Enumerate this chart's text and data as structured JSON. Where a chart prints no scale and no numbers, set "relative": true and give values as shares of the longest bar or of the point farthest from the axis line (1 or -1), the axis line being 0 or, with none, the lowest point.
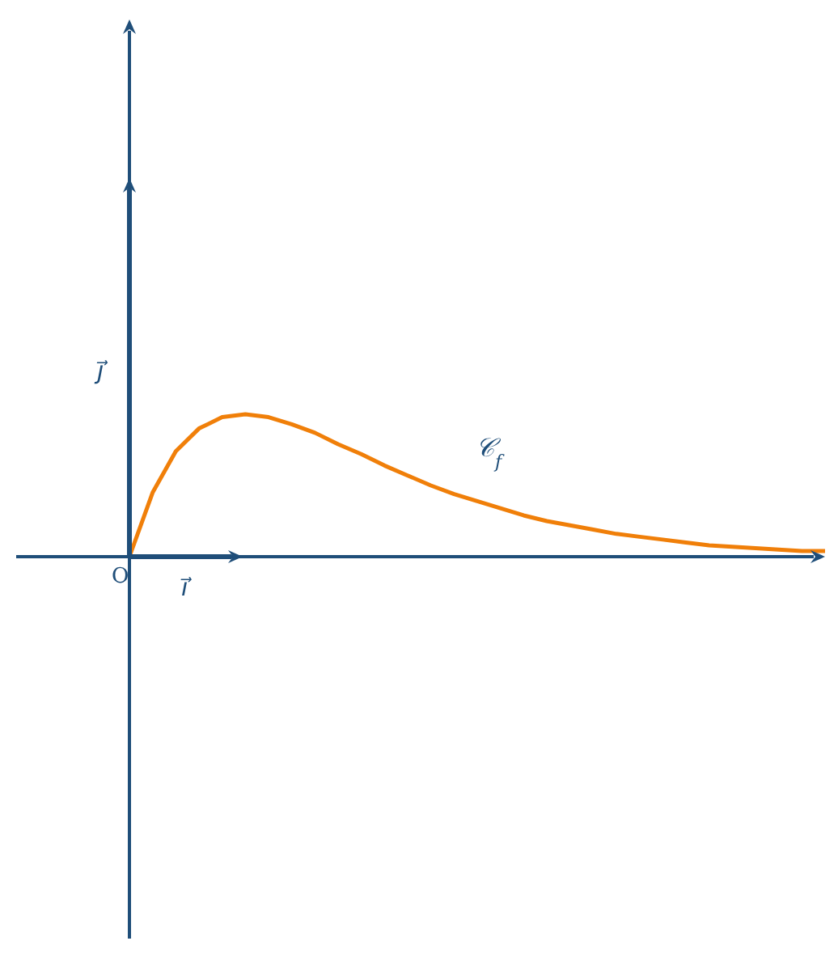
{
  "chart_data": {
    "type": "line",
    "relative": true,
    "categories": [
      null,
      null,
      null,
      null,
      null,
      null,
      null,
      null,
      null,
      null,
      null,
      null,
      null,
      null,
      null,
      null,
      null,
      null,
      null,
      null,
      null,
      null,
      null,
      null,
      null,
      null,
      null,
      null,
      null,
      null,
      null
    ],
    "series": [
      {
        "color": "#f07f09",
        "values": [
          0,
          0.45,
          0.74,
          0.9,
          0.98,
          1,
          0.98,
          0.93,
          0.87,
          0.79,
          0.72,
          0.64,
          0.57,
          0.5,
          0.44,
          0.39,
          0.34,
          0.29,
          0.25,
          0.22,
          0.19,
          0.16,
          0.14,
          0.12,
          0.1,
          0.08,
          0.07,
          0.06,
          0.05,
          0.04,
          0.04
        ]
      }
    ],
    "annotations": [
      "O",
      "i⃗",
      "j⃗",
      "𝒞$_{f}$"
    ]
  }
}
